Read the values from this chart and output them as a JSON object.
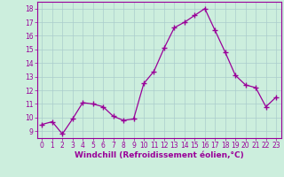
{
  "x": [
    0,
    1,
    2,
    3,
    4,
    5,
    6,
    7,
    8,
    9,
    10,
    11,
    12,
    13,
    14,
    15,
    16,
    17,
    18,
    19,
    20,
    21,
    22,
    23
  ],
  "y": [
    9.5,
    9.7,
    8.8,
    9.9,
    11.1,
    11.0,
    10.8,
    10.1,
    9.8,
    9.9,
    12.5,
    13.4,
    15.1,
    16.6,
    17.0,
    17.5,
    18.0,
    16.4,
    14.8,
    13.1,
    12.4,
    12.2,
    10.8,
    11.5
  ],
  "line_color": "#990099",
  "marker": "+",
  "marker_size": 4,
  "marker_linewidth": 1.0,
  "background_color": "#cceedd",
  "grid_color": "#aacccc",
  "xlabel": "Windchill (Refroidissement éolien,°C)",
  "ylim": [
    8.5,
    18.5
  ],
  "xlim": [
    -0.5,
    23.5
  ],
  "yticks": [
    9,
    10,
    11,
    12,
    13,
    14,
    15,
    16,
    17,
    18
  ],
  "xticks": [
    0,
    1,
    2,
    3,
    4,
    5,
    6,
    7,
    8,
    9,
    10,
    11,
    12,
    13,
    14,
    15,
    16,
    17,
    18,
    19,
    20,
    21,
    22,
    23
  ],
  "tick_color": "#990099",
  "label_color": "#990099",
  "tick_fontsize": 5.5,
  "xlabel_fontsize": 6.5
}
